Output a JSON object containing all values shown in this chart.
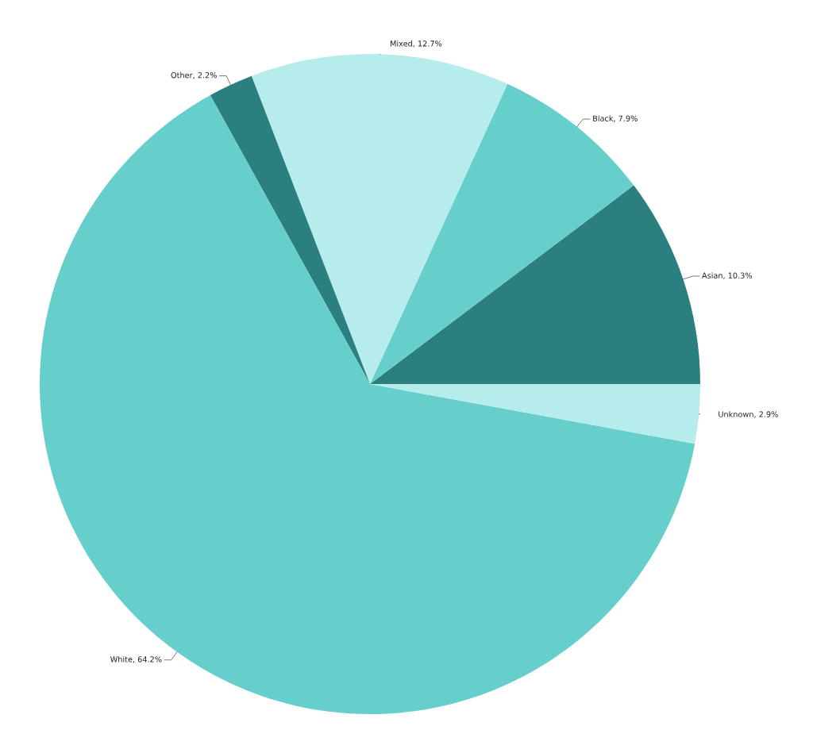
{
  "chart_data": {
    "type": "pie",
    "categories": [
      "Asian",
      "Black",
      "Mixed",
      "Other",
      "White",
      "Unknown"
    ],
    "values": [
      10.3,
      7.9,
      12.7,
      2.2,
      64.2,
      2.9
    ],
    "value_labels": [
      "10.3%",
      "7.9%",
      "12.7%",
      "2.2%",
      "64.2%",
      "2.9%"
    ],
    "colors": [
      "#2b7f7f",
      "#67cfcb",
      "#b6ecec",
      "#2b7f7f",
      "#67cfcb",
      "#b6ecec"
    ]
  }
}
